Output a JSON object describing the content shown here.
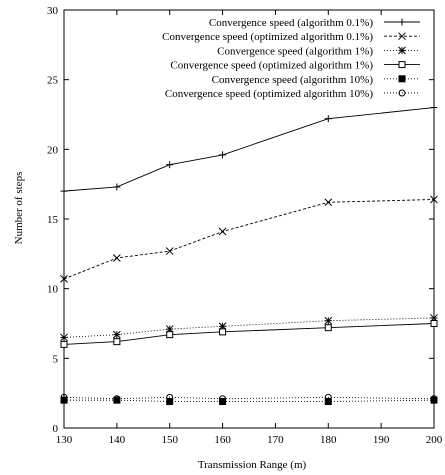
{
  "chart_data": {
    "type": "line",
    "title": "",
    "xlabel": "Transmission Range (m)",
    "ylabel": "Number of steps",
    "xlim": [
      130,
      200
    ],
    "ylim": [
      0,
      30
    ],
    "x_ticks": [
      130,
      140,
      150,
      160,
      170,
      180,
      190,
      200
    ],
    "y_ticks": [
      0,
      5,
      10,
      15,
      20,
      25,
      30
    ],
    "grid": false,
    "legend_position": "top-right",
    "x": [
      130,
      140,
      150,
      160,
      180,
      200
    ],
    "series": [
      {
        "name": "Convergence speed (algorithm 0.1%)",
        "marker": "plus",
        "dash": "",
        "color": "#000000",
        "values": [
          17.0,
          17.3,
          18.9,
          19.6,
          22.2,
          23.0
        ]
      },
      {
        "name": "Convergence speed (optimized algorithm 0.1%)",
        "marker": "x",
        "dash": "3,2",
        "color": "#000000",
        "values": [
          10.7,
          12.2,
          12.7,
          14.1,
          16.2,
          16.4
        ]
      },
      {
        "name": "Convergence speed (algorithm 1%)",
        "marker": "asterisk",
        "dash": "1,2",
        "color": "#000000",
        "values": [
          6.5,
          6.7,
          7.1,
          7.3,
          7.7,
          7.9
        ]
      },
      {
        "name": "Convergence speed (optimized algorithm 1%)",
        "marker": "square",
        "dash": "",
        "color": "#000000",
        "values": [
          6.0,
          6.2,
          6.7,
          6.9,
          7.2,
          7.5
        ]
      },
      {
        "name": "Convergence speed (algorithm 10%)",
        "marker": "filled-square",
        "dash": "1,2",
        "color": "#000000",
        "values": [
          2.0,
          2.0,
          1.9,
          1.9,
          1.9,
          2.0
        ]
      },
      {
        "name": "Convergence speed (optimized algorithm 10%)",
        "marker": "circle",
        "dash": "1,2",
        "color": "#000000",
        "values": [
          2.2,
          2.1,
          2.2,
          2.1,
          2.2,
          2.1
        ]
      }
    ]
  }
}
